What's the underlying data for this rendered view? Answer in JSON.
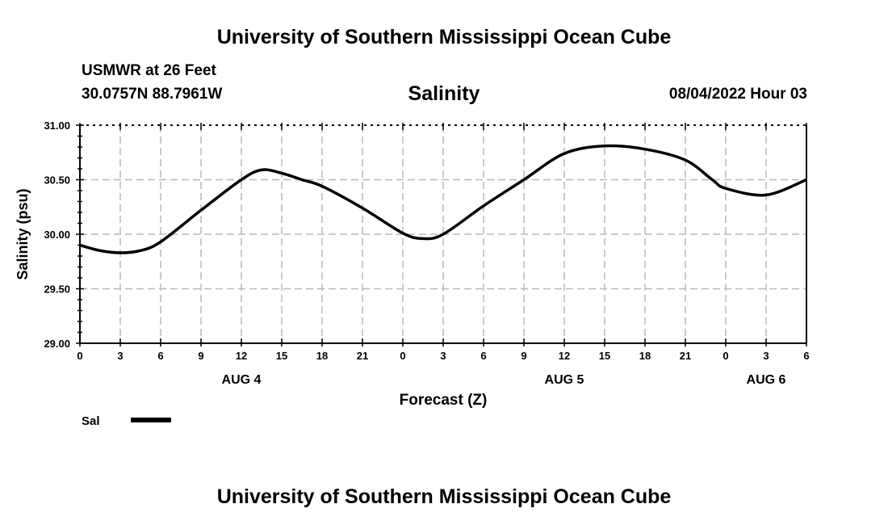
{
  "header": {
    "title": "University of Southern Mississippi Ocean Cube",
    "station": "USMWR at 26 Feet",
    "coords": "30.0757N  88.7961W",
    "date": "08/04/2022 Hour 03"
  },
  "footer": {
    "title": "University of Southern Mississippi Ocean Cube"
  },
  "chart_data": {
    "type": "line",
    "title": "Salinity",
    "xlabel": "Forecast (Z)",
    "ylabel": "Salinity (psu)",
    "xlim": [
      0,
      54
    ],
    "ylim": [
      29.0,
      31.0
    ],
    "grid": true,
    "ytick_labels": [
      "29.00",
      "29.50",
      "30.00",
      "30.50",
      "31.00"
    ],
    "ytick_values": [
      29.0,
      29.5,
      30.0,
      30.5,
      31.0
    ],
    "xtick_labels": [
      "0",
      "3",
      "6",
      "9",
      "12",
      "15",
      "18",
      "21",
      "0",
      "3",
      "6",
      "9",
      "12",
      "15",
      "18",
      "21",
      "0",
      "3",
      "6"
    ],
    "day_labels": [
      {
        "label": "AUG 4",
        "hour": 12
      },
      {
        "label": "AUG 5",
        "hour": 36
      },
      {
        "label": "AUG 6",
        "hour": 51
      }
    ],
    "legend": {
      "placement": "bottom-left",
      "entries": [
        {
          "name": "Sal",
          "color": "#000000"
        }
      ]
    },
    "series": [
      {
        "name": "Sal",
        "x": [
          0,
          1.5,
          3,
          4.5,
          6,
          9,
          12,
          13.5,
          15,
          16.5,
          18,
          21,
          24,
          25.5,
          27,
          30,
          33,
          36,
          39,
          42,
          45,
          47,
          48,
          51,
          54
        ],
        "values": [
          29.9,
          29.85,
          29.83,
          29.85,
          29.93,
          30.22,
          30.5,
          30.59,
          30.56,
          30.5,
          30.44,
          30.24,
          30.01,
          29.96,
          30.0,
          30.26,
          30.5,
          30.74,
          30.81,
          30.78,
          30.68,
          30.5,
          30.42,
          30.36,
          30.5
        ]
      }
    ]
  }
}
